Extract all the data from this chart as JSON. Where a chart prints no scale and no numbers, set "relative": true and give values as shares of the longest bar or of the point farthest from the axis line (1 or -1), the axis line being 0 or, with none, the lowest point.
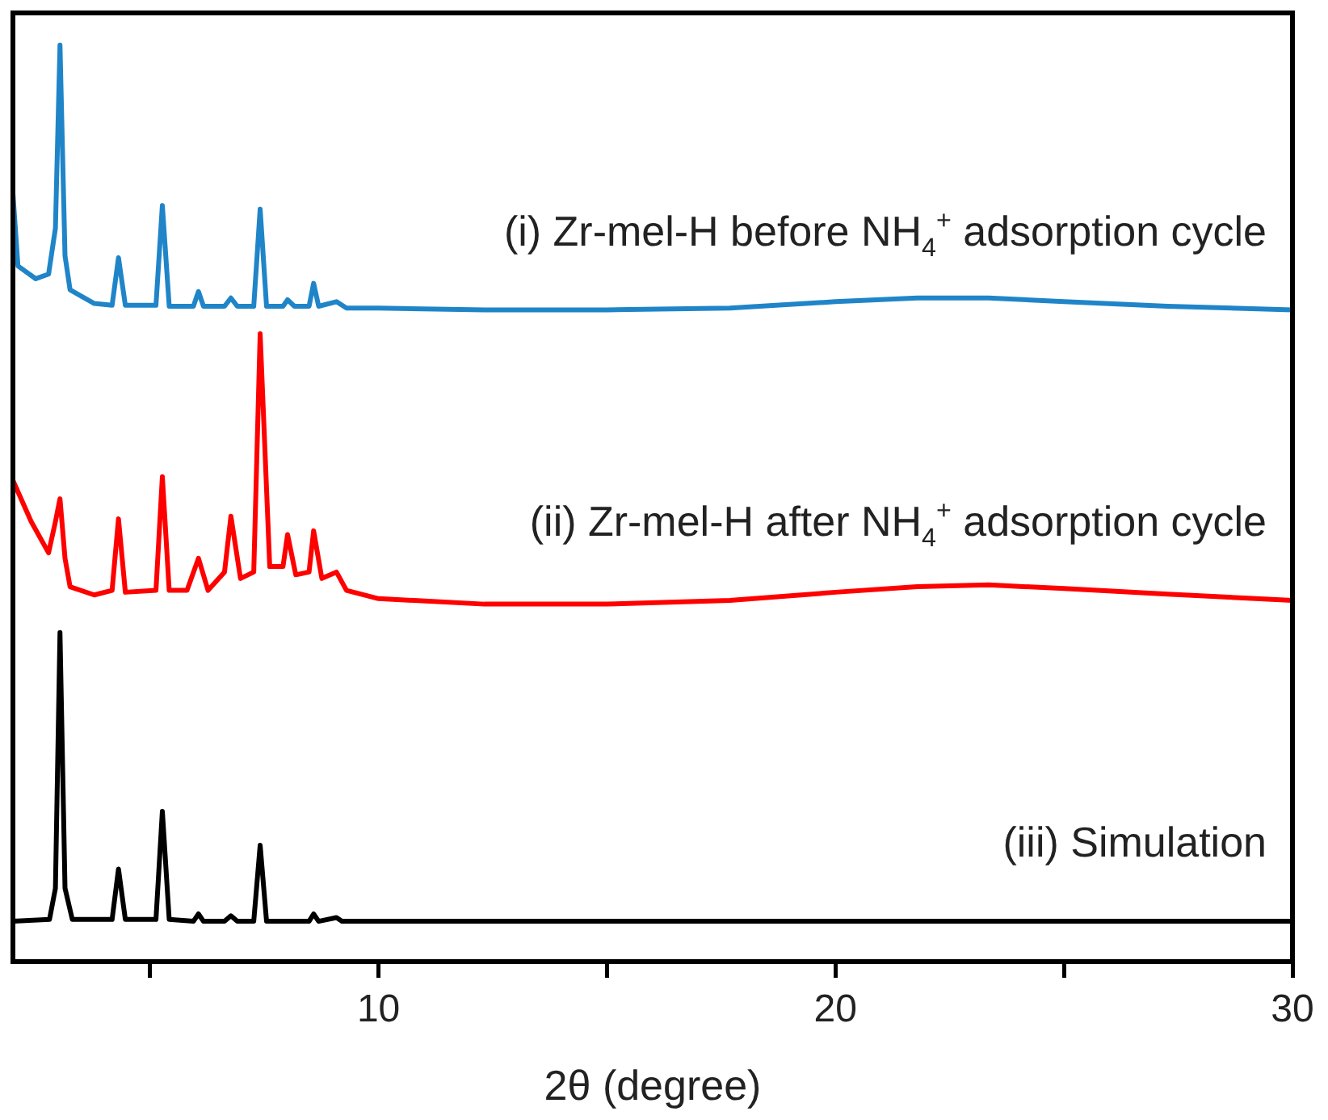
{
  "chart_data": {
    "type": "line",
    "relative": true,
    "xlabel": "2θ (degree)",
    "xlim": [
      2,
      30
    ],
    "xticks": [
      {
        "value": 5,
        "label": null
      },
      10,
      {
        "value": 15,
        "label": null
      },
      20,
      {
        "value": 25,
        "label": null
      },
      30
    ],
    "legend": false,
    "grid": false,
    "marker": "none",
    "line_style": "solid",
    "series": [
      {
        "name": "(i) Zr-mel-H before NH$_{4}$$^{+}$ adsorption cycle",
        "color": "#1f85c8",
        "x": [
          2.0,
          2.11,
          2.5,
          2.78,
          2.93,
          3.03,
          3.14,
          3.25,
          3.78,
          4.17,
          4.31,
          4.46,
          5.13,
          5.27,
          5.42,
          5.95,
          6.06,
          6.17,
          6.63,
          6.77,
          6.91,
          7.27,
          7.41,
          7.55,
          7.91,
          8.01,
          8.16,
          8.48,
          8.58,
          8.69,
          9.08,
          9.3,
          10,
          12.32,
          15,
          17.69,
          20,
          21.79,
          23.35,
          25,
          27.27,
          30
        ],
        "values": [
          0.838,
          0.759,
          0.745,
          0.75,
          0.8,
          1,
          0.77,
          0.733,
          0.718,
          0.716,
          0.768,
          0.716,
          0.716,
          0.825,
          0.715,
          0.715,
          0.731,
          0.715,
          0.715,
          0.724,
          0.715,
          0.715,
          0.821,
          0.715,
          0.715,
          0.722,
          0.715,
          0.715,
          0.74,
          0.715,
          0.72,
          0.713,
          0.713,
          0.711,
          0.711,
          0.713,
          0.72,
          0.724,
          0.724,
          0.72,
          0.715,
          0.711
        ]
      },
      {
        "name": "(ii) Zr-mel-H after NH$_{4}$$^{+}$ adsorption cycle",
        "color": "#ff0000",
        "x": [
          2.0,
          2.4,
          2.78,
          2.93,
          3.03,
          3.14,
          3.25,
          3.78,
          4.17,
          4.31,
          4.46,
          5.13,
          5.27,
          5.42,
          5.81,
          6.06,
          6.27,
          6.63,
          6.77,
          6.98,
          7.27,
          7.41,
          7.62,
          7.91,
          8.01,
          8.19,
          8.48,
          8.58,
          8.76,
          9.08,
          9.3,
          10,
          12.32,
          15,
          17.69,
          20,
          21.79,
          23.35,
          25,
          27.27,
          30
        ],
        "values": [
          0.525,
          0.48,
          0.446,
          0.48,
          0.505,
          0.44,
          0.409,
          0.4,
          0.405,
          0.483,
          0.403,
          0.405,
          0.529,
          0.405,
          0.405,
          0.44,
          0.405,
          0.425,
          0.486,
          0.418,
          0.425,
          0.685,
          0.431,
          0.431,
          0.466,
          0.422,
          0.425,
          0.47,
          0.418,
          0.425,
          0.405,
          0.396,
          0.39,
          0.39,
          0.394,
          0.403,
          0.409,
          0.411,
          0.407,
          0.401,
          0.394
        ]
      },
      {
        "name": "(iii) Simulation",
        "color": "#000000",
        "x": [
          2.0,
          2.8,
          2.93,
          3.03,
          3.14,
          3.3,
          4.17,
          4.31,
          4.46,
          5.13,
          5.27,
          5.42,
          5.95,
          6.06,
          6.17,
          6.63,
          6.77,
          6.91,
          7.27,
          7.41,
          7.55,
          8.48,
          8.58,
          8.69,
          9.08,
          9.2,
          30
        ],
        "values": [
          0.044,
          0.046,
          0.08,
          0.359,
          0.08,
          0.046,
          0.046,
          0.101,
          0.046,
          0.046,
          0.164,
          0.046,
          0.044,
          0.052,
          0.044,
          0.044,
          0.05,
          0.044,
          0.044,
          0.127,
          0.044,
          0.044,
          0.052,
          0.044,
          0.048,
          0.044,
          0.044
        ]
      }
    ]
  }
}
